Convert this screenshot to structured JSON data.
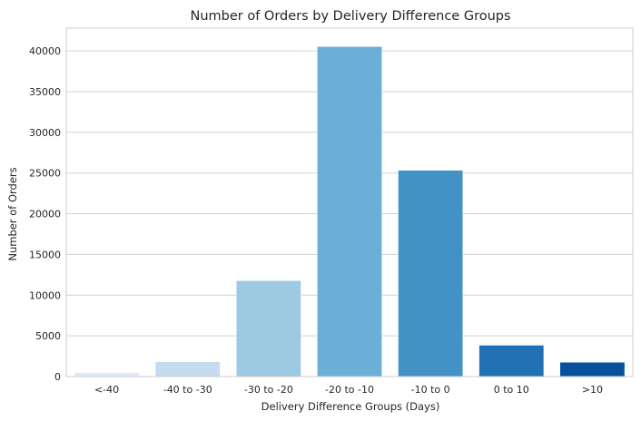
{
  "chart_data": {
    "type": "bar",
    "title": "Number of Orders by Delivery Difference Groups",
    "xlabel": "Delivery Difference Groups (Days)",
    "ylabel": "Number of Orders",
    "categories": [
      "<-40",
      "-40 to -30",
      "-30 to -20",
      "-20 to -10",
      "-10 to 0",
      "0 to 10",
      ">10"
    ],
    "values": [
      480,
      1820,
      11780,
      40540,
      25340,
      3850,
      1760
    ],
    "ylim": [
      0,
      42800
    ],
    "yticks": [
      0,
      5000,
      10000,
      15000,
      20000,
      25000,
      30000,
      35000,
      40000
    ],
    "grid": "horizontal",
    "colors": [
      "#deebf7",
      "#c6dbef",
      "#9ecae1",
      "#6baed6",
      "#4292c6",
      "#2171b5",
      "#08519c"
    ]
  }
}
